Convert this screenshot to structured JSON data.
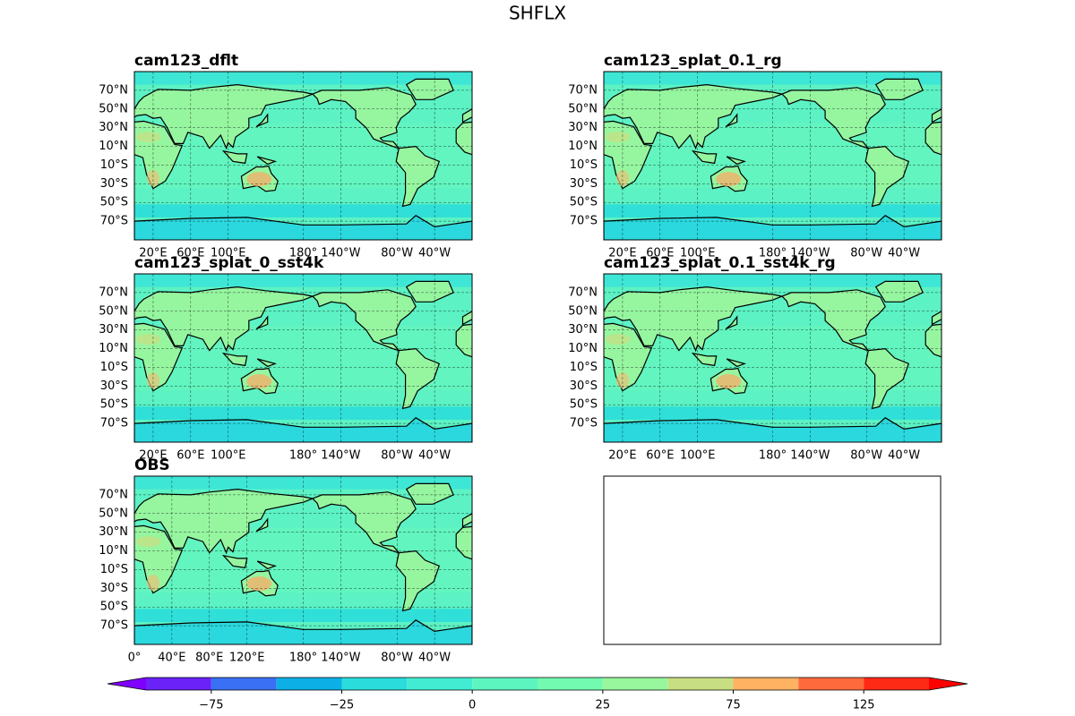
{
  "title": "SHFLX",
  "map": {
    "xlim": [
      0,
      360
    ],
    "ylim": [
      -90,
      90
    ],
    "lat_ticks": [
      {
        "value": 70,
        "label": "70°N"
      },
      {
        "value": 50,
        "label": "50°N"
      },
      {
        "value": 30,
        "label": "30°N"
      },
      {
        "value": 10,
        "label": "10°N"
      },
      {
        "value": -10,
        "label": "10°S"
      },
      {
        "value": -30,
        "label": "30°S"
      },
      {
        "value": -50,
        "label": "50°S"
      },
      {
        "value": -70,
        "label": "70°S"
      }
    ]
  },
  "panels": [
    {
      "title": "cam123_dflt",
      "lon_ticks": [
        {
          "value": 20,
          "label": "20°E"
        },
        {
          "value": 60,
          "label": "60°E"
        },
        {
          "value": 100,
          "label": "100°E"
        },
        {
          "value": 180,
          "label": "180°"
        },
        {
          "value": 220,
          "label": "140°W"
        },
        {
          "value": 280,
          "label": "80°W"
        },
        {
          "value": 320,
          "label": "40°W"
        }
      ]
    },
    {
      "title": "cam123_splat_0.1_rg",
      "lon_ticks": [
        {
          "value": 20,
          "label": "20°E"
        },
        {
          "value": 60,
          "label": "60°E"
        },
        {
          "value": 100,
          "label": "100°E"
        },
        {
          "value": 180,
          "label": "180°"
        },
        {
          "value": 220,
          "label": "140°W"
        },
        {
          "value": 280,
          "label": "80°W"
        },
        {
          "value": 320,
          "label": "40°W"
        }
      ]
    },
    {
      "title": "cam123_splat_0_sst4k",
      "lon_ticks": [
        {
          "value": 20,
          "label": "20°E"
        },
        {
          "value": 60,
          "label": "60°E"
        },
        {
          "value": 100,
          "label": "100°E"
        },
        {
          "value": 180,
          "label": "180°"
        },
        {
          "value": 220,
          "label": "140°W"
        },
        {
          "value": 280,
          "label": "80°W"
        },
        {
          "value": 320,
          "label": "40°W"
        }
      ]
    },
    {
      "title": "cam123_splat_0.1_sst4k_rg",
      "lon_ticks": [
        {
          "value": 20,
          "label": "20°E"
        },
        {
          "value": 60,
          "label": "60°E"
        },
        {
          "value": 100,
          "label": "100°E"
        },
        {
          "value": 180,
          "label": "180°"
        },
        {
          "value": 220,
          "label": "140°W"
        },
        {
          "value": 280,
          "label": "80°W"
        },
        {
          "value": 320,
          "label": "40°W"
        }
      ]
    },
    {
      "title": "OBS",
      "lon_ticks": [
        {
          "value": 0,
          "label": "0°"
        },
        {
          "value": 40,
          "label": "40°E"
        },
        {
          "value": 80,
          "label": "80°E"
        },
        {
          "value": 120,
          "label": "120°E"
        },
        {
          "value": 180,
          "label": "180°"
        },
        {
          "value": 220,
          "label": "140°W"
        },
        {
          "value": 280,
          "label": "80°W"
        },
        {
          "value": 320,
          "label": "40°W"
        }
      ]
    }
  ],
  "colorbar": {
    "levels": [
      -100,
      -75,
      -50,
      -25,
      -12.5,
      0,
      12.5,
      25,
      50,
      75,
      100,
      125,
      150
    ],
    "colors": [
      "#6a22f8",
      "#3a70f4",
      "#0db0e6",
      "#2adcdc",
      "#42ecd2",
      "#5cf5c0",
      "#72fbb0",
      "#98f79c",
      "#c8de82",
      "#ffb262",
      "#ff6a3c",
      "#ff2a16"
    ],
    "under_color": "#7f00ff",
    "over_color": "#ff0000",
    "ticks": [
      {
        "value": -75,
        "label": "−75"
      },
      {
        "value": -25,
        "label": "−25"
      },
      0,
      25,
      75,
      125
    ]
  }
}
